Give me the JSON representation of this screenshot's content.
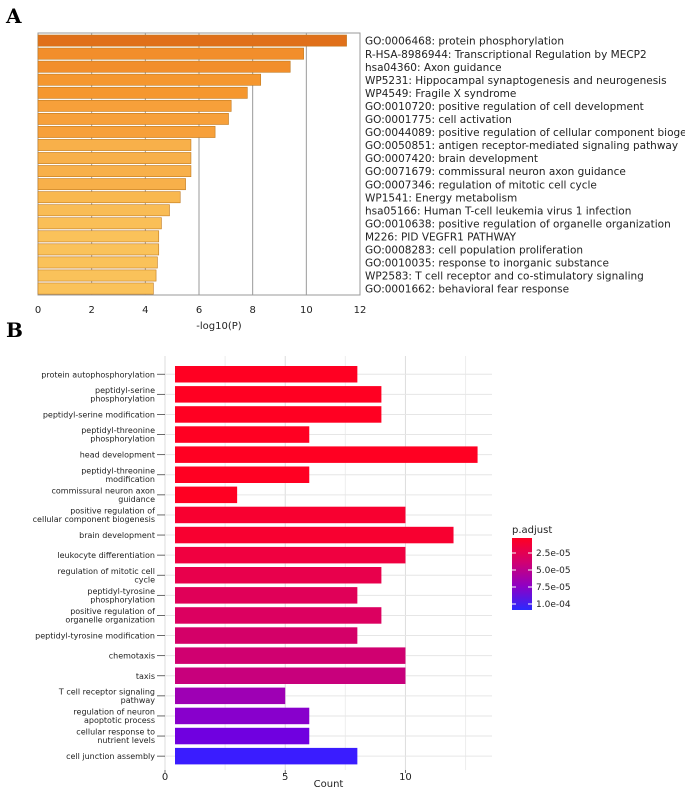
{
  "panels": {
    "a": "A",
    "b": "B"
  },
  "chart_data": [
    {
      "type": "bar",
      "orientation": "horizontal",
      "panel": "A",
      "xlabel": "-log10(P)",
      "xlim": [
        0,
        12
      ],
      "xticks": [
        0,
        2,
        4,
        6,
        8,
        10,
        12
      ],
      "grid": true,
      "categories": [
        "GO:0006468: protein phosphorylation",
        "R-HSA-8986944: Transcriptional Regulation by MECP2",
        "hsa04360: Axon guidance",
        "WP5231: Hippocampal synaptogenesis and neurogenesis",
        "WP4549: Fragile X syndrome",
        "GO:0010720: positive regulation of cell development",
        "GO:0001775: cell activation",
        "GO:0044089: positive regulation of cellular component biogenesis",
        "GO:0050851: antigen receptor-mediated signaling pathway",
        "GO:0007420: brain development",
        "GO:0071679: commissural neuron axon guidance",
        "GO:0007346: regulation of mitotic cell cycle",
        "WP1541: Energy metabolism",
        "hsa05166: Human T-cell leukemia virus 1 infection",
        "GO:0010638: positive regulation of organelle organization",
        "M226: PID VEGFR1 PATHWAY",
        "GO:0008283: cell population proliferation",
        "GO:0010035: response to inorganic substance",
        "WP2583: T cell receptor and co-stimulatory signaling",
        "GO:0001662: behavioral fear response"
      ],
      "values": [
        11.5,
        9.9,
        9.4,
        8.3,
        7.8,
        7.2,
        7.1,
        6.6,
        5.7,
        5.7,
        5.7,
        5.5,
        5.3,
        4.9,
        4.6,
        4.5,
        4.5,
        4.45,
        4.4,
        4.3
      ],
      "colors": [
        "#e0701a",
        "#f28e2b",
        "#f28e2b",
        "#f5972f",
        "#f5972f",
        "#f7a03a",
        "#f7a03a",
        "#f7a03a",
        "#f8b04a",
        "#f8b04a",
        "#f8b04a",
        "#f8b04a",
        "#f9b84f",
        "#f9bc55",
        "#fabf57",
        "#fac25a",
        "#fac25a",
        "#fac25a",
        "#fac25a",
        "#fac25a"
      ]
    },
    {
      "type": "bar",
      "orientation": "horizontal",
      "panel": "B",
      "xlabel": "Count",
      "xlim": [
        0,
        13.6
      ],
      "xticks": [
        0,
        5,
        10
      ],
      "grid": true,
      "categories": [
        "protein autophosphorylation",
        "peptidyl-serine\nphosphorylation",
        "peptidyl-serine modification",
        "peptidyl-threonine\nphosphorylation",
        "head development",
        "peptidyl-threonine\nmodification",
        "commissural neuron axon\nguidance",
        "positive regulation of\ncellular component biogenesis",
        "brain development",
        "leukocyte differentiation",
        "regulation of mitotic cell\ncycle",
        "peptidyl-tyrosine\nphosphorylation",
        "positive regulation of\norganelle organization",
        "peptidyl-tyrosine modification",
        "chemotaxis",
        "taxis",
        "T cell receptor signaling\npathway",
        "regulation of neuron\napoptotic process",
        "cellular response to\nnutrient levels",
        "cell junction assembly"
      ],
      "values": [
        8,
        9,
        9,
        6,
        13,
        6,
        3,
        10,
        12,
        10,
        9,
        8,
        9,
        8,
        10,
        10,
        5,
        6,
        6,
        8
      ],
      "colors": [
        "#ff0022",
        "#ff0022",
        "#ff0022",
        "#ff0022",
        "#ff0022",
        "#ff0022",
        "#ff0022",
        "#f80030",
        "#f80030",
        "#f00040",
        "#e8004c",
        "#e00058",
        "#dc0060",
        "#d40068",
        "#d00070",
        "#c8007c",
        "#9e00b4",
        "#8800cc",
        "#7000e0",
        "#3a1cff"
      ],
      "legend": {
        "title": "p.adjust",
        "position": "right",
        "ticks": [
          "2.5e-05",
          "5.0e-05",
          "7.5e-05",
          "1.0e-04"
        ],
        "gradient": [
          "#ff0022",
          "#d20070",
          "#8f00c4",
          "#2a2aff"
        ]
      }
    }
  ]
}
